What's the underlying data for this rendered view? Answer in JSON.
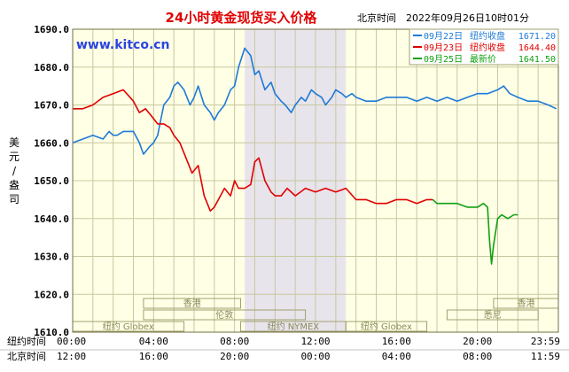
{
  "chart_data": {
    "type": "line",
    "title": "24小时黄金现货买入价格",
    "subtitle": "北京时间　2022年09月26日10时01分",
    "watermark": "www.kitco.cn",
    "ylabel": "美元/盎司",
    "ylim": [
      1610,
      1690
    ],
    "yticks": [
      1610,
      1620,
      1630,
      1640,
      1650,
      1660,
      1670,
      1680,
      1690
    ],
    "ytick_labels": [
      "1610.0",
      "1620.0",
      "1630.0",
      "1640.0",
      "1650.0",
      "1660.0",
      "1670.0",
      "1680.0",
      "1690.0"
    ],
    "xlim": [
      0,
      24
    ],
    "grid": true,
    "legend_position": "top-right",
    "time_rows": [
      {
        "label": "纽约时间",
        "ticks": [
          "00:00",
          "04:00",
          "08:00",
          "12:00",
          "16:00",
          "20:00",
          "23:59"
        ]
      },
      {
        "label": "北京时间",
        "ticks": [
          "12:00",
          "16:00",
          "20:00",
          "00:00",
          "04:00",
          "08:00",
          "11:59"
        ]
      }
    ],
    "shaded_range": [
      8.5,
      13.5
    ],
    "sessions": [
      {
        "label": "香港",
        "row": 1,
        "start": 3.5,
        "end": 8.3
      },
      {
        "label": "香港",
        "row": 1,
        "start": 20.8,
        "end": 24
      },
      {
        "label": "伦敦",
        "row": 2,
        "start": 3.5,
        "end": 11.5
      },
      {
        "label": "悉尼",
        "row": 2,
        "start": 18.5,
        "end": 23
      },
      {
        "label": "纽约 Globex",
        "row": 3,
        "start": 0,
        "end": 5.5
      },
      {
        "label": "纽约 NYMEX",
        "row": 3,
        "start": 8.3,
        "end": 13.5
      },
      {
        "label": "纽约 Globex",
        "row": 3,
        "start": 13.5,
        "end": 17.5
      }
    ],
    "series": [
      {
        "name": "09月22日",
        "legend_label": "纽约收盘",
        "legend_value": "1671.20",
        "color": "#1e7ad6",
        "x": [
          0,
          0.5,
          1,
          1.5,
          1.8,
          2,
          2.2,
          2.5,
          3,
          3.3,
          3.5,
          3.8,
          4,
          4.2,
          4.5,
          4.8,
          5,
          5.2,
          5.5,
          5.8,
          6,
          6.2,
          6.5,
          6.8,
          7,
          7.2,
          7.5,
          7.8,
          8,
          8.2,
          8.5,
          8.8,
          9,
          9.2,
          9.5,
          9.8,
          10,
          10.3,
          10.5,
          10.8,
          11,
          11.3,
          11.5,
          11.8,
          12,
          12.3,
          12.5,
          12.8,
          13,
          13.3,
          13.5,
          13.8,
          14,
          14.5,
          15,
          15.5,
          16,
          16.5,
          17,
          17.5,
          18,
          18.5,
          19,
          19.5,
          20,
          20.5,
          21,
          21.3,
          21.6,
          22,
          22.5,
          23,
          23.5,
          23.9
        ],
        "y": [
          1660,
          1661,
          1662,
          1661,
          1663,
          1662,
          1662,
          1663,
          1663,
          1660,
          1657,
          1659,
          1660,
          1662,
          1670,
          1672,
          1675,
          1676,
          1674,
          1670,
          1672,
          1675,
          1670,
          1668,
          1666,
          1668,
          1670,
          1674,
          1675,
          1680,
          1685,
          1683,
          1678,
          1679,
          1674,
          1676,
          1673,
          1671,
          1670,
          1668,
          1670,
          1672,
          1671,
          1674,
          1673,
          1672,
          1670,
          1672,
          1674,
          1673,
          1672,
          1673,
          1672,
          1671,
          1671,
          1672,
          1672,
          1672,
          1671,
          1672,
          1671,
          1672,
          1671,
          1672,
          1673,
          1673,
          1674,
          1675,
          1673,
          1672,
          1671,
          1671,
          1670,
          1669
        ]
      },
      {
        "name": "09月23日",
        "legend_label": "纽约收盘",
        "legend_value": "1644.40",
        "color": "#e00000",
        "x": [
          0,
          0.5,
          1,
          1.5,
          2,
          2.5,
          3,
          3.3,
          3.6,
          3.9,
          4.2,
          4.5,
          4.8,
          5,
          5.3,
          5.6,
          5.9,
          6.2,
          6.5,
          6.8,
          7,
          7.2,
          7.5,
          7.8,
          8,
          8.2,
          8.5,
          8.8,
          9,
          9.2,
          9.5,
          9.8,
          10,
          10.3,
          10.6,
          11,
          11.5,
          12,
          12.5,
          13,
          13.5,
          14,
          14.5,
          15,
          15.5,
          16,
          16.5,
          17,
          17.5,
          17.8
        ],
        "y": [
          1669,
          1669,
          1670,
          1672,
          1673,
          1674,
          1671,
          1668,
          1669,
          1667,
          1665,
          1665,
          1664,
          1662,
          1660,
          1656,
          1652,
          1654,
          1646,
          1642,
          1643,
          1645,
          1648,
          1646,
          1650,
          1648,
          1648,
          1649,
          1655,
          1656,
          1650,
          1647,
          1646,
          1646,
          1648,
          1646,
          1648,
          1647,
          1648,
          1647,
          1648,
          1645,
          1645,
          1644,
          1644,
          1645,
          1645,
          1644,
          1645,
          1645
        ]
      },
      {
        "name": "09月25日",
        "legend_label": "最新价",
        "legend_value": "1641.50",
        "color": "#10a010",
        "x": [
          17.8,
          18,
          18.5,
          19,
          19.5,
          20,
          20.3,
          20.5,
          20.6,
          20.7,
          20.8,
          21,
          21.2,
          21.5,
          21.8,
          22
        ],
        "y": [
          1645,
          1644,
          1644,
          1644,
          1643,
          1643,
          1644,
          1643,
          1634,
          1628,
          1633,
          1640,
          1641,
          1640,
          1641,
          1641
        ]
      }
    ]
  }
}
